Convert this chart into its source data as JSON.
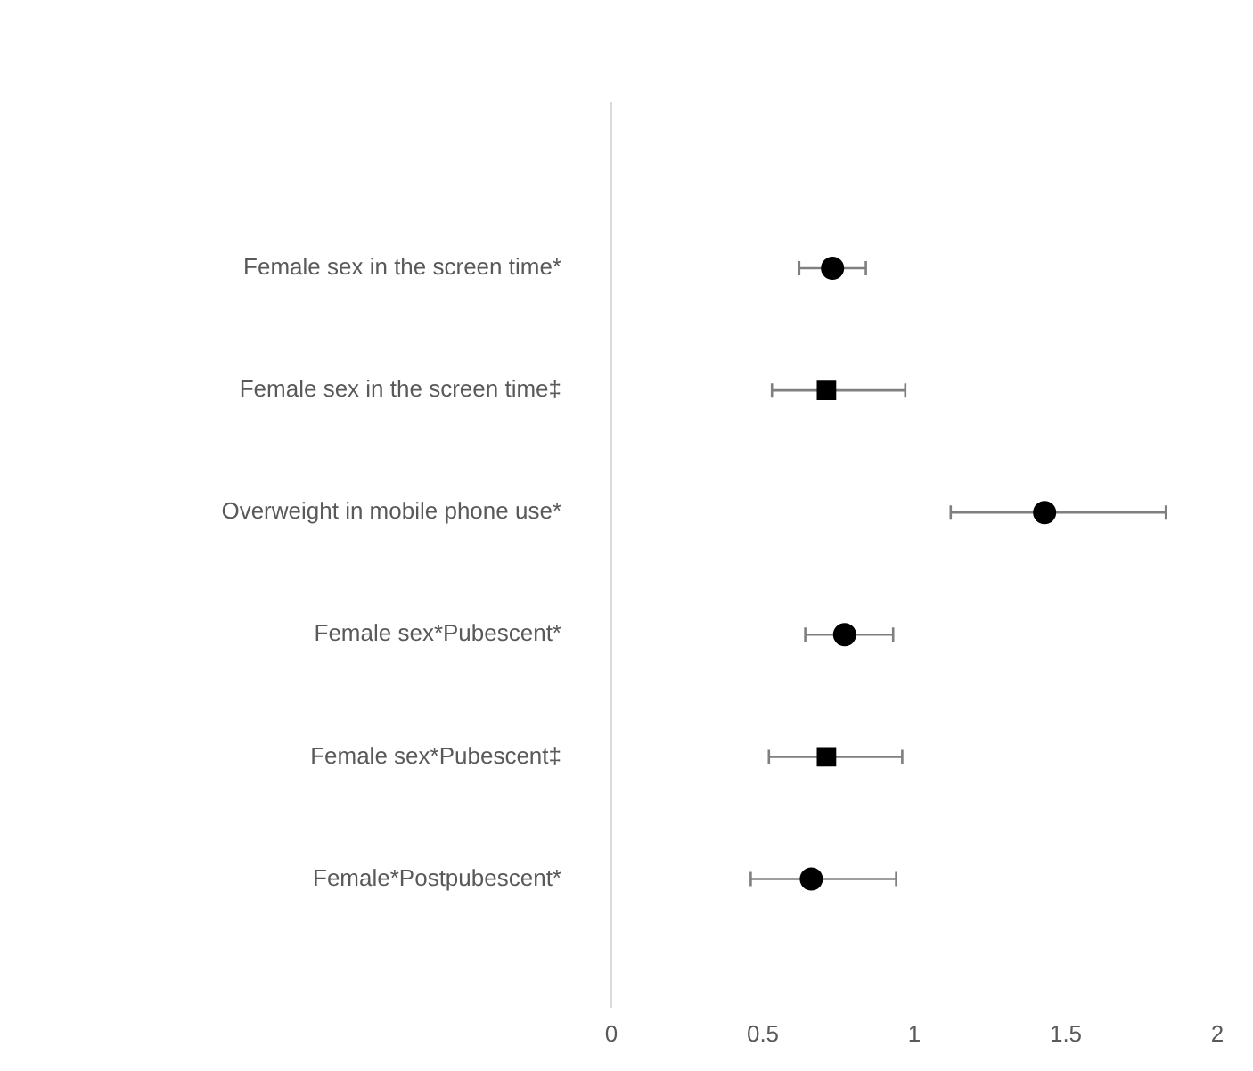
{
  "chart_data": {
    "type": "scatter",
    "orientation": "horizontal",
    "categories": [
      "Female sex in the screen time*",
      "Female sex in the screen time‡",
      "Overweight in mobile phone use*",
      "Female sex*Pubescent*",
      "Female sex*Pubescent‡",
      "Female*Postpubescent*"
    ],
    "xlim": [
      0,
      2
    ],
    "xticks": [
      0,
      0.5,
      1,
      1.5,
      2
    ],
    "grid": false,
    "legend": false,
    "series": [
      {
        "color": "#000000",
        "marker": "circle",
        "values": [
          0.73,
          null,
          1.43,
          0.77,
          null,
          0.66
        ],
        "errors": [
          [
            0.62,
            0.84
          ],
          null,
          [
            1.12,
            1.83
          ],
          [
            0.64,
            0.93
          ],
          null,
          [
            0.46,
            0.94
          ]
        ]
      },
      {
        "color": "#000000",
        "marker": "square",
        "values": [
          null,
          0.71,
          null,
          null,
          0.71,
          null
        ],
        "errors": [
          null,
          [
            0.53,
            0.97
          ],
          null,
          null,
          [
            0.52,
            0.96
          ],
          null
        ]
      }
    ]
  }
}
